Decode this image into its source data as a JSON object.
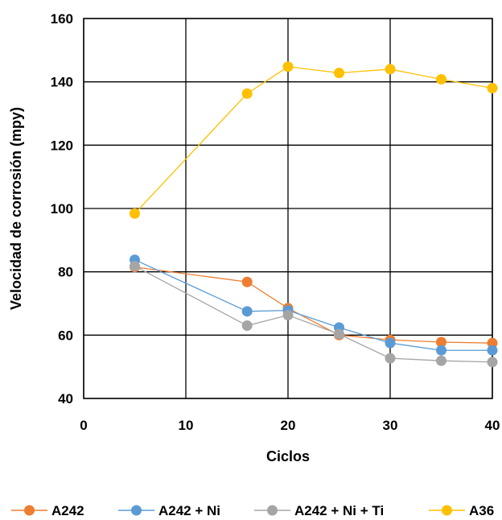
{
  "chart_data": {
    "type": "line",
    "title": "",
    "xlabel": "Ciclos",
    "ylabel": "Velocidad de corrosión (mpy)",
    "xlim": [
      0,
      40
    ],
    "ylim": [
      40,
      160
    ],
    "xticks": [
      0,
      10,
      20,
      30,
      40
    ],
    "yticks": [
      40,
      60,
      80,
      100,
      120,
      140,
      160
    ],
    "grid": true,
    "legend_position": "bottom",
    "series": [
      {
        "name": "A242",
        "color": "#ED7D31",
        "x": [
          5,
          16,
          20,
          25,
          30,
          35,
          40
        ],
        "y": [
          81.5,
          76.8,
          68.5,
          60.0,
          58.5,
          57.8,
          57.5
        ]
      },
      {
        "name": "A242 + Ni",
        "color": "#5B9BD5",
        "x": [
          5,
          16,
          20,
          25,
          30,
          35,
          40
        ],
        "y": [
          83.8,
          67.5,
          67.8,
          62.4,
          57.5,
          55.2,
          55.2
        ]
      },
      {
        "name": "A242 + Ni + Ti",
        "color": "#A5A5A5",
        "x": [
          5,
          16,
          20,
          25,
          30,
          35,
          40
        ],
        "y": [
          81.8,
          63.0,
          66.3,
          60.3,
          52.7,
          51.9,
          51.5
        ]
      },
      {
        "name": "A36",
        "color": "#FFC000",
        "x": [
          5,
          16,
          20,
          25,
          30,
          35,
          40
        ],
        "y": [
          98.4,
          136.3,
          144.8,
          142.8,
          144.0,
          140.8,
          138.0
        ]
      }
    ]
  }
}
